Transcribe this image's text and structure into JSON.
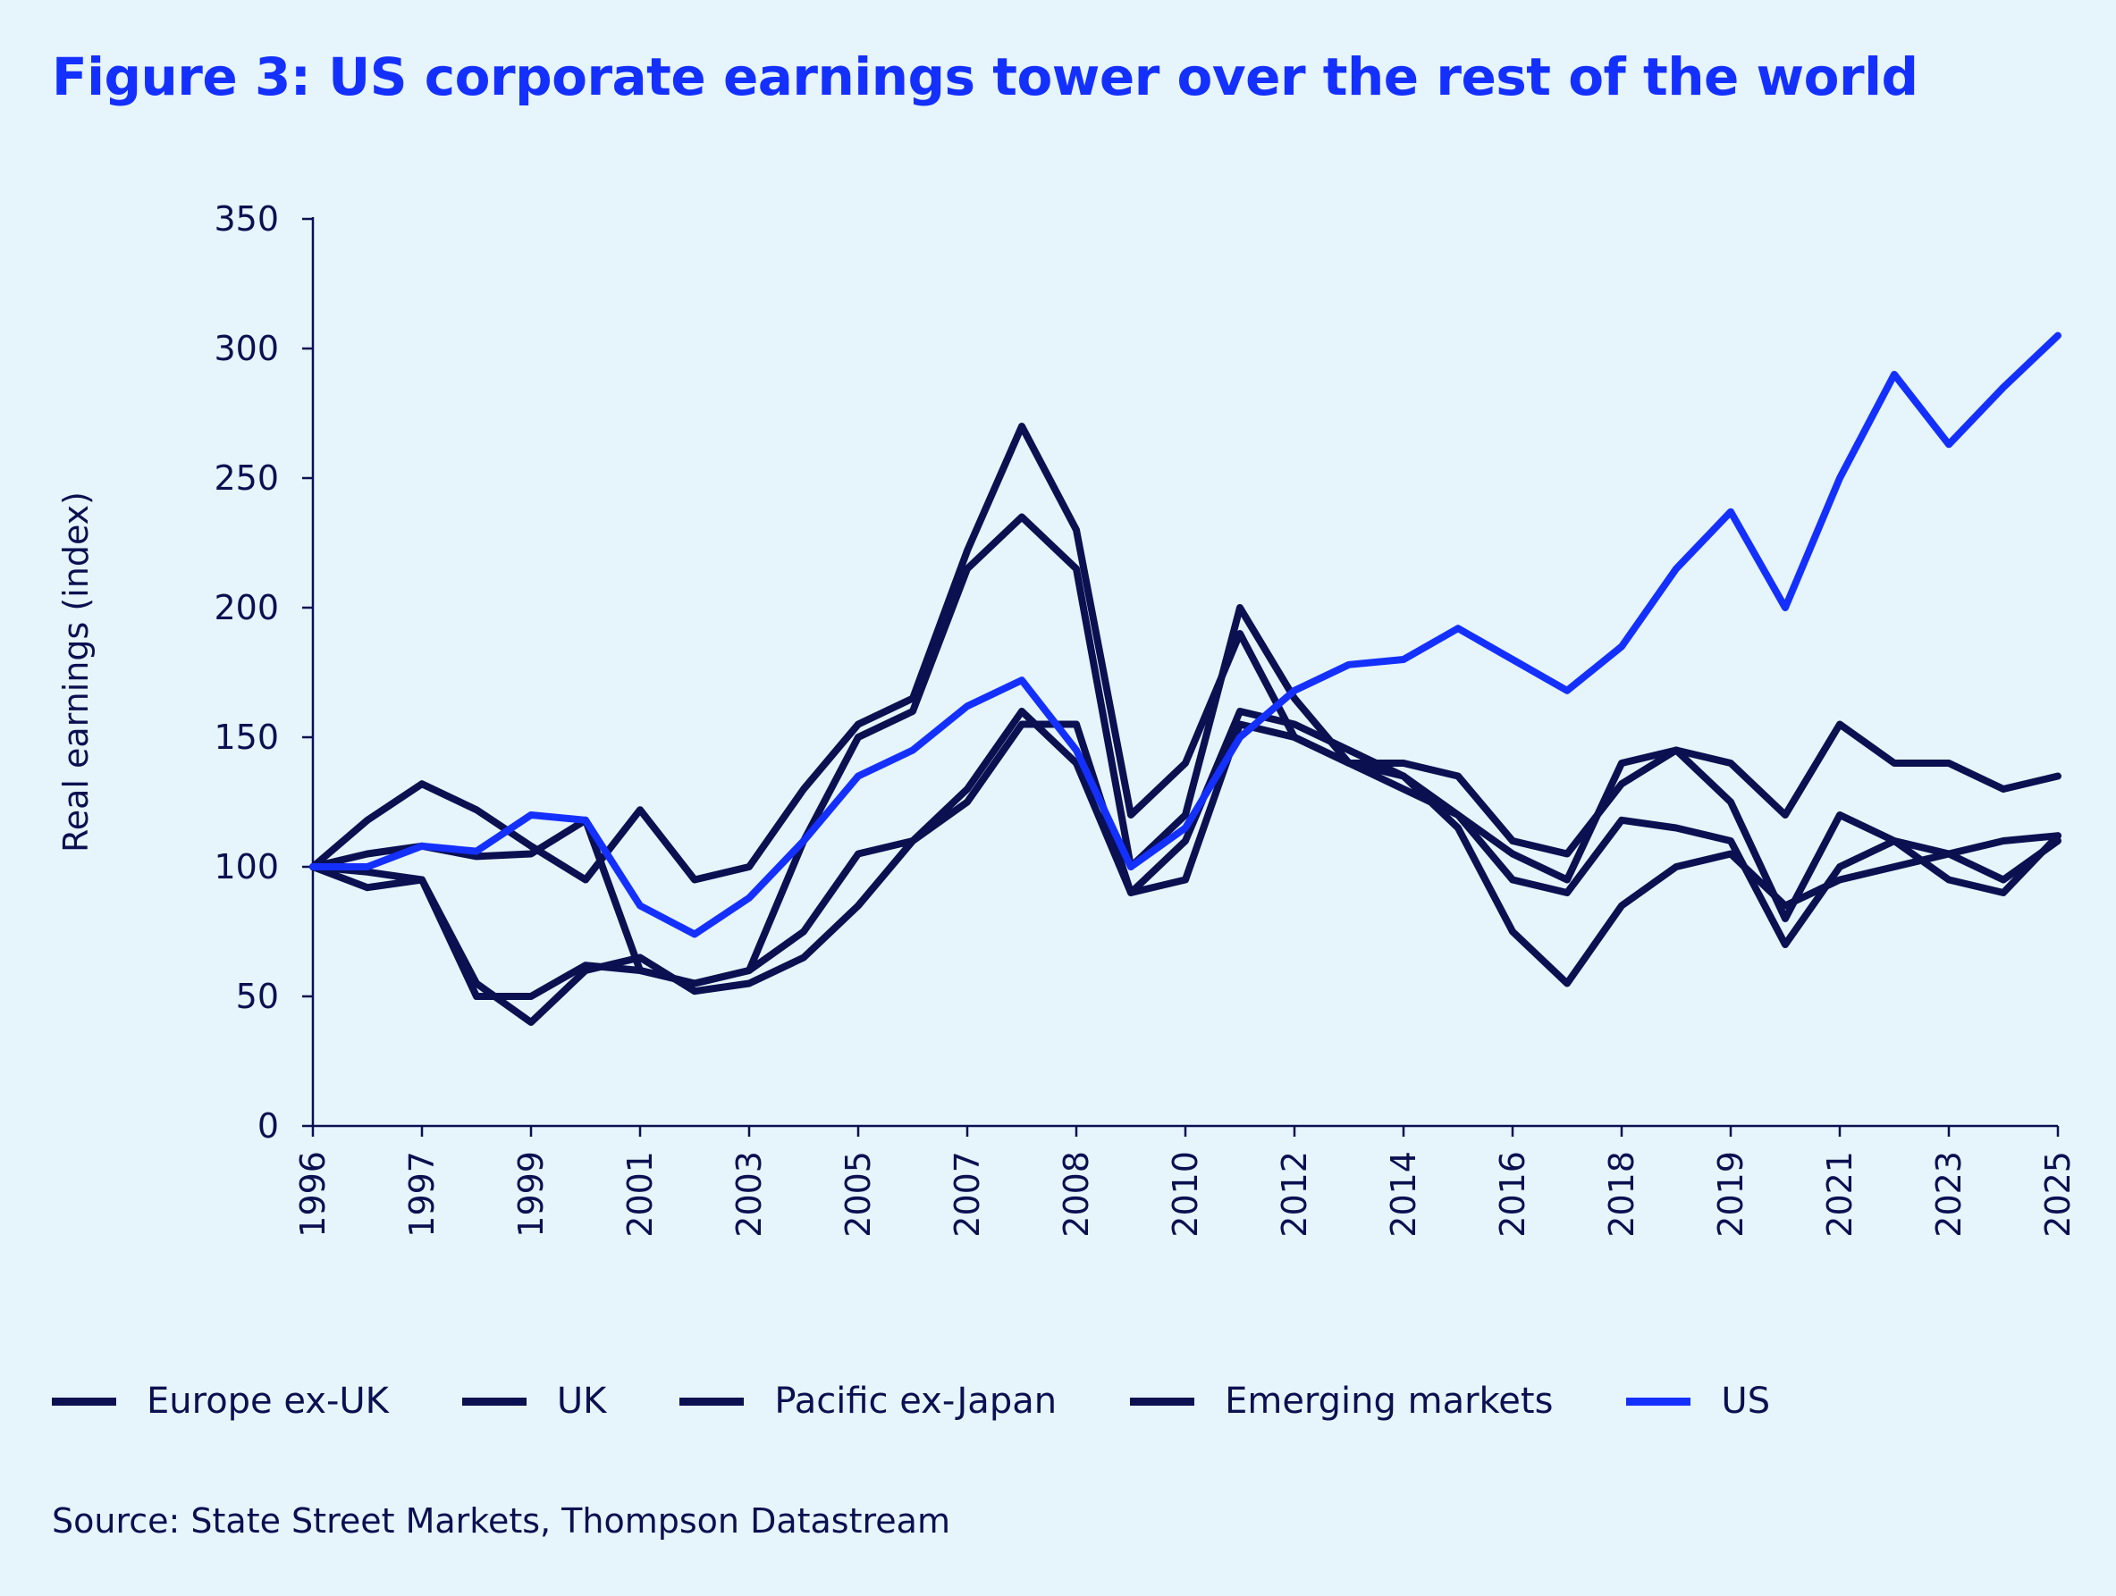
{
  "title": "Figure 3: US corporate earnings tower over the rest of the world",
  "source": "Source: State Street Markets, Thompson Datastream",
  "colors": {
    "background": "#e6f4fc",
    "dark": "#0a1050",
    "us": "#1430ff",
    "title": "#1430ff"
  },
  "chart_data": {
    "type": "line",
    "title": "Figure 3: US corporate earnings tower over the rest of the world",
    "xlabel": "",
    "ylabel": "Real earnings (index)",
    "ylim": [
      0,
      350
    ],
    "yticks": [
      "0",
      "50",
      "100",
      "150",
      "200",
      "250",
      "300",
      "350"
    ],
    "xticks": [
      "1996",
      "1997",
      "1999",
      "2001",
      "2003",
      "2005",
      "2007",
      "2008",
      "2010",
      "2012",
      "2014",
      "2016",
      "2018",
      "2019",
      "2021",
      "2023",
      "2025"
    ],
    "x_range": [
      "1996",
      "2025"
    ],
    "grid": false,
    "legend": "bottom",
    "series": [
      {
        "name": "Europe ex-UK",
        "color": "#0a1050",
        "values": [
          100,
          118,
          132,
          122,
          108,
          95,
          122,
          95,
          100,
          130,
          155,
          165,
          222,
          270,
          230,
          120,
          140,
          190,
          150,
          140,
          135,
          120,
          105,
          95,
          140,
          145,
          140,
          120,
          155,
          140,
          140,
          130,
          135
        ]
      },
      {
        "name": "UK",
        "color": "#0a1050",
        "values": [
          100,
          105,
          108,
          104,
          105,
          118,
          60,
          55,
          60,
          110,
          150,
          160,
          215,
          235,
          215,
          100,
          120,
          200,
          165,
          140,
          140,
          135,
          110,
          105,
          132,
          145,
          125,
          80,
          120,
          110,
          105,
          95,
          110
        ]
      },
      {
        "name": "Pacific ex-Japan",
        "color": "#0a1050",
        "values": [
          100,
          98,
          95,
          50,
          50,
          62,
          60,
          55,
          60,
          75,
          105,
          110,
          130,
          160,
          140,
          90,
          95,
          155,
          150,
          140,
          130,
          120,
          95,
          90,
          118,
          115,
          110,
          70,
          100,
          110,
          95,
          90,
          112
        ]
      },
      {
        "name": "Emerging markets",
        "color": "#0a1050",
        "values": [
          100,
          92,
          95,
          55,
          40,
          60,
          65,
          52,
          55,
          65,
          85,
          110,
          125,
          155,
          155,
          90,
          110,
          160,
          155,
          145,
          135,
          115,
          75,
          55,
          85,
          100,
          105,
          85,
          95,
          100,
          105,
          110,
          112
        ]
      },
      {
        "name": "US",
        "color": "#1430ff",
        "values": [
          100,
          100,
          108,
          106,
          120,
          118,
          85,
          74,
          88,
          110,
          135,
          145,
          162,
          172,
          145,
          100,
          115,
          150,
          168,
          178,
          180,
          192,
          180,
          168,
          185,
          215,
          237,
          200,
          250,
          290,
          263,
          285,
          305
        ]
      }
    ]
  }
}
